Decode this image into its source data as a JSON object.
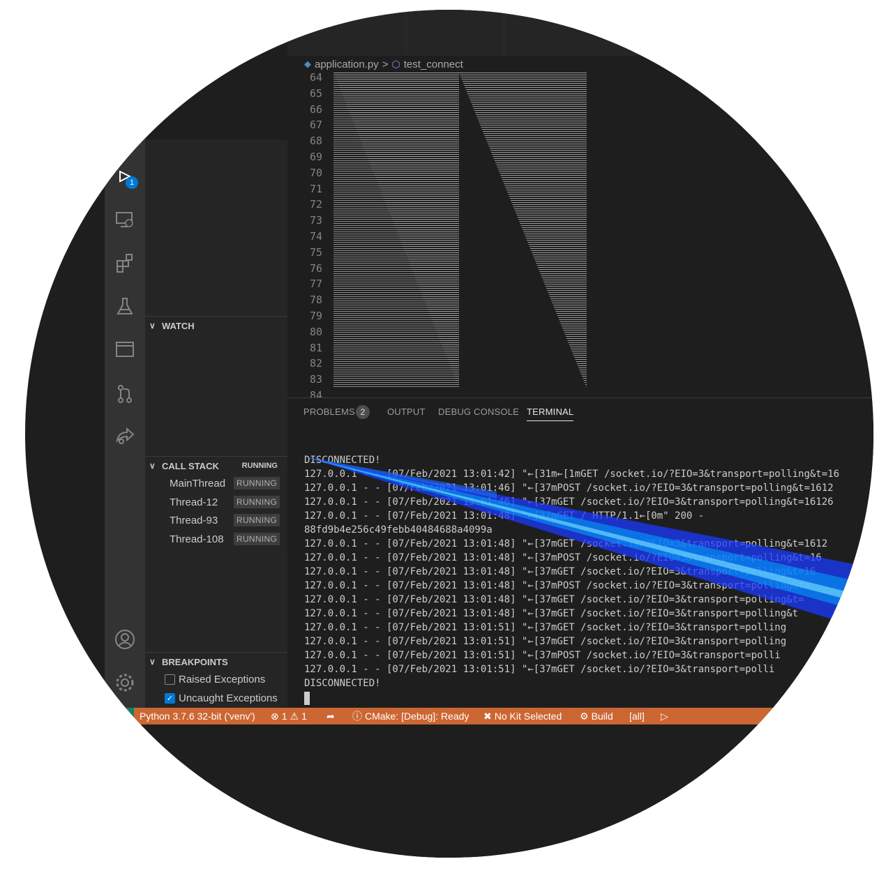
{
  "activity_bar": {
    "debug_badge": "1",
    "icons": [
      "run-debug-icon",
      "remote-explorer-icon",
      "extensions-icon",
      "testing-icon",
      "window-icon",
      "source-control-icon",
      "live-share-icon",
      "account-icon",
      "settings-gear-icon"
    ]
  },
  "sidebar": {
    "watch_title": "WATCH",
    "call_stack_title": "CALL STACK",
    "call_stack_state": "RUNNING",
    "threads": [
      {
        "name": "MainThread",
        "state": "RUNNING"
      },
      {
        "name": "Thread-12",
        "state": "RUNNING"
      },
      {
        "name": "Thread-93",
        "state": "RUNNING"
      },
      {
        "name": "Thread-108",
        "state": "RUNNING"
      }
    ],
    "breakpoints_title": "BREAKPOINTS",
    "breakpoints": [
      {
        "label": "Raised Exceptions",
        "checked": false
      },
      {
        "label": "Uncaught Exceptions",
        "checked": true
      }
    ]
  },
  "editor": {
    "file": "application.py",
    "separator": ">",
    "symbol": "test_connect",
    "line_numbers": [
      "64",
      "65",
      "66",
      "67",
      "68",
      "69",
      "70",
      "71",
      "72",
      "73",
      "74",
      "75",
      "76",
      "77",
      "78",
      "79",
      "80",
      "81",
      "82",
      "83",
      "84"
    ]
  },
  "panel": {
    "tabs": [
      {
        "label": "PROBLEMS",
        "count": "2"
      },
      {
        "label": "OUTPUT"
      },
      {
        "label": "DEBUG CONSOLE"
      },
      {
        "label": "TERMINAL",
        "active": true
      }
    ],
    "terminal_lines": [
      "DISCONNECTED!",
      "127.0.0.1 - - [07/Feb/2021 13:01:42] \"←[31m←[1mGET /socket.io/?EIO=3&transport=polling&t=16",
      "127.0.0.1 - - [07/Feb/2021 13:01:46] \"←[37mPOST /socket.io/?EIO=3&transport=polling&t=1612",
      "127.0.0.1 - - [07/Feb/2021 13:01:46] \"←[37mGET /socket.io/?EIO=3&transport=polling&t=16126",
      "127.0.0.1 - - [07/Feb/2021 13:01:48] \"←[37mGET / HTTP/1.1←[0m\" 200 -",
      "88fd9b4e256c49febb40484688a4099a",
      "127.0.0.1 - - [07/Feb/2021 13:01:48] \"←[37mGET /socket.io/?EIO=3&transport=polling&t=1612",
      "127.0.0.1 - - [07/Feb/2021 13:01:48] \"←[37mPOST /socket.io/?EIO=3&transport=polling&t=16",
      "127.0.0.1 - - [07/Feb/2021 13:01:48] \"←[37mGET /socket.io/?EIO=3&transport=polling&t=16",
      "127.0.0.1 - - [07/Feb/2021 13:01:48] \"←[37mPOST /socket.io/?EIO=3&transport=polling&t=",
      "127.0.0.1 - - [07/Feb/2021 13:01:48] \"←[37mGET /socket.io/?EIO=3&transport=polling&t=",
      "127.0.0.1 - - [07/Feb/2021 13:01:48] \"←[37mGET /socket.io/?EIO=3&transport=polling&t",
      "127.0.0.1 - - [07/Feb/2021 13:01:51] \"←[37mGET /socket.io/?EIO=3&transport=polling",
      "127.0.0.1 - - [07/Feb/2021 13:01:51] \"←[37mGET /socket.io/?EIO=3&transport=polling",
      "127.0.0.1 - - [07/Feb/2021 13:01:51] \"←[37mPOST /socket.io/?EIO=3&transport=polli",
      "127.0.0.1 - - [07/Feb/2021 13:01:51] \"←[37mGET /socket.io/?EIO=3&transport=polli",
      "DISCONNECTED!"
    ]
  },
  "status_bar": {
    "python": "Python 3.7.6 32-bit ('venv')",
    "errors": "1",
    "warnings": "1",
    "cmake": "CMake: [Debug]: Ready",
    "kit": "No Kit Selected",
    "build": "Build",
    "target": "[all]",
    "color": "#cc6633"
  }
}
